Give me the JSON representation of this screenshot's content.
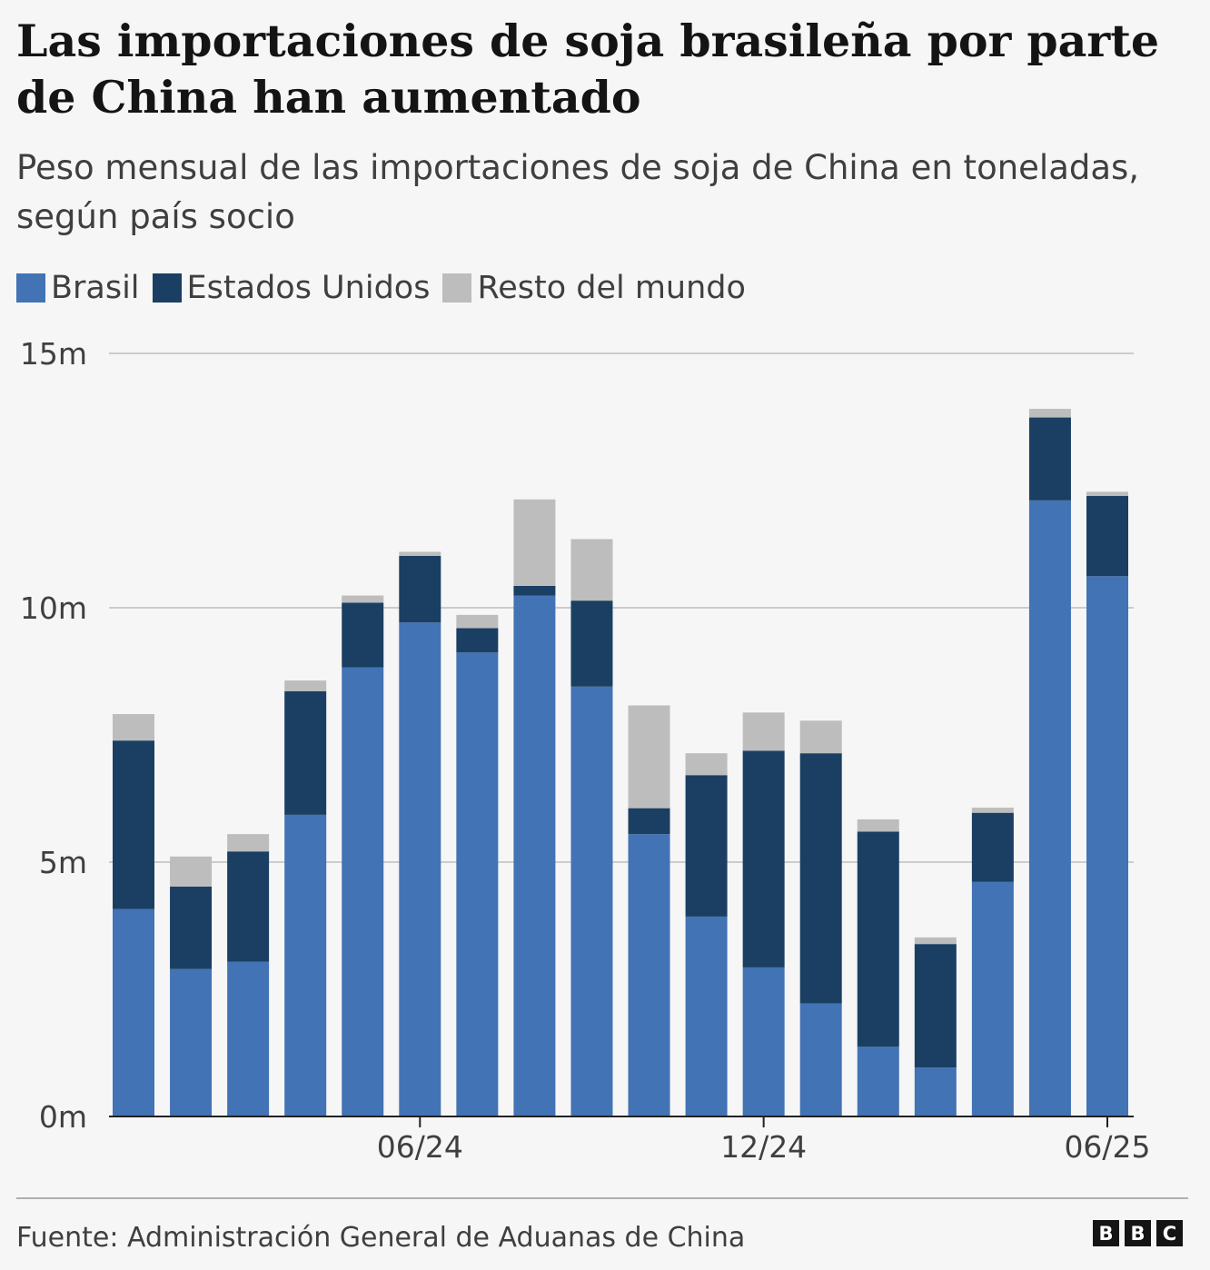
{
  "title": "Las importaciones de soja brasileña por parte de China han aumentado",
  "subtitle": "Peso mensual de las importaciones de soja de China en toneladas, según país socio",
  "legend": [
    {
      "label": "Brasil",
      "color": "#4273b4"
    },
    {
      "label": "Estados Unidos",
      "color": "#1a3f63"
    },
    {
      "label": "Resto del mundo",
      "color": "#bdbdbd"
    }
  ],
  "source": "Fuente: Administración General de Aduanas de China",
  "logo": [
    "B",
    "B",
    "C"
  ],
  "chart_data": {
    "type": "bar",
    "stacked": true,
    "title": "Las importaciones de soja brasileña por parte de China han aumentado",
    "ylabel": "toneladas",
    "ylim": [
      0,
      15
    ],
    "yticks": [
      {
        "value": 0,
        "label": "0m"
      },
      {
        "value": 5,
        "label": "5m"
      },
      {
        "value": 10,
        "label": "10m"
      },
      {
        "value": 15,
        "label": "15m"
      }
    ],
    "xtick_labels": [
      {
        "index": 5,
        "label": "06/24"
      },
      {
        "index": 11,
        "label": "12/24"
      },
      {
        "index": 17,
        "label": "06/25"
      }
    ],
    "categories": [
      "01/24",
      "02/24",
      "03/24",
      "04/24",
      "05/24",
      "06/24",
      "07/24",
      "08/24",
      "09/24",
      "10/24",
      "11/24",
      "12/24",
      "01/25",
      "02/25",
      "03/25",
      "04/25",
      "05/25",
      "06/25"
    ],
    "series": [
      {
        "name": "Brasil",
        "color": "#4273b4",
        "values": [
          4.08,
          2.9,
          3.04,
          5.93,
          8.83,
          9.71,
          9.12,
          10.24,
          8.45,
          5.55,
          3.93,
          2.93,
          2.22,
          1.37,
          0.96,
          4.61,
          12.11,
          10.62
        ]
      },
      {
        "name": "Estados Unidos",
        "color": "#1a3f63",
        "values": [
          3.31,
          1.62,
          2.17,
          2.43,
          1.27,
          1.31,
          0.48,
          0.19,
          1.69,
          0.51,
          2.78,
          4.26,
          4.92,
          4.23,
          2.43,
          1.36,
          1.63,
          1.58
        ]
      },
      {
        "name": "Resto del mundo",
        "color": "#bdbdbd",
        "values": [
          0.52,
          0.59,
          0.34,
          0.21,
          0.14,
          0.08,
          0.26,
          1.7,
          1.21,
          2.02,
          0.43,
          0.75,
          0.64,
          0.24,
          0.13,
          0.1,
          0.17,
          0.08
        ]
      }
    ]
  }
}
